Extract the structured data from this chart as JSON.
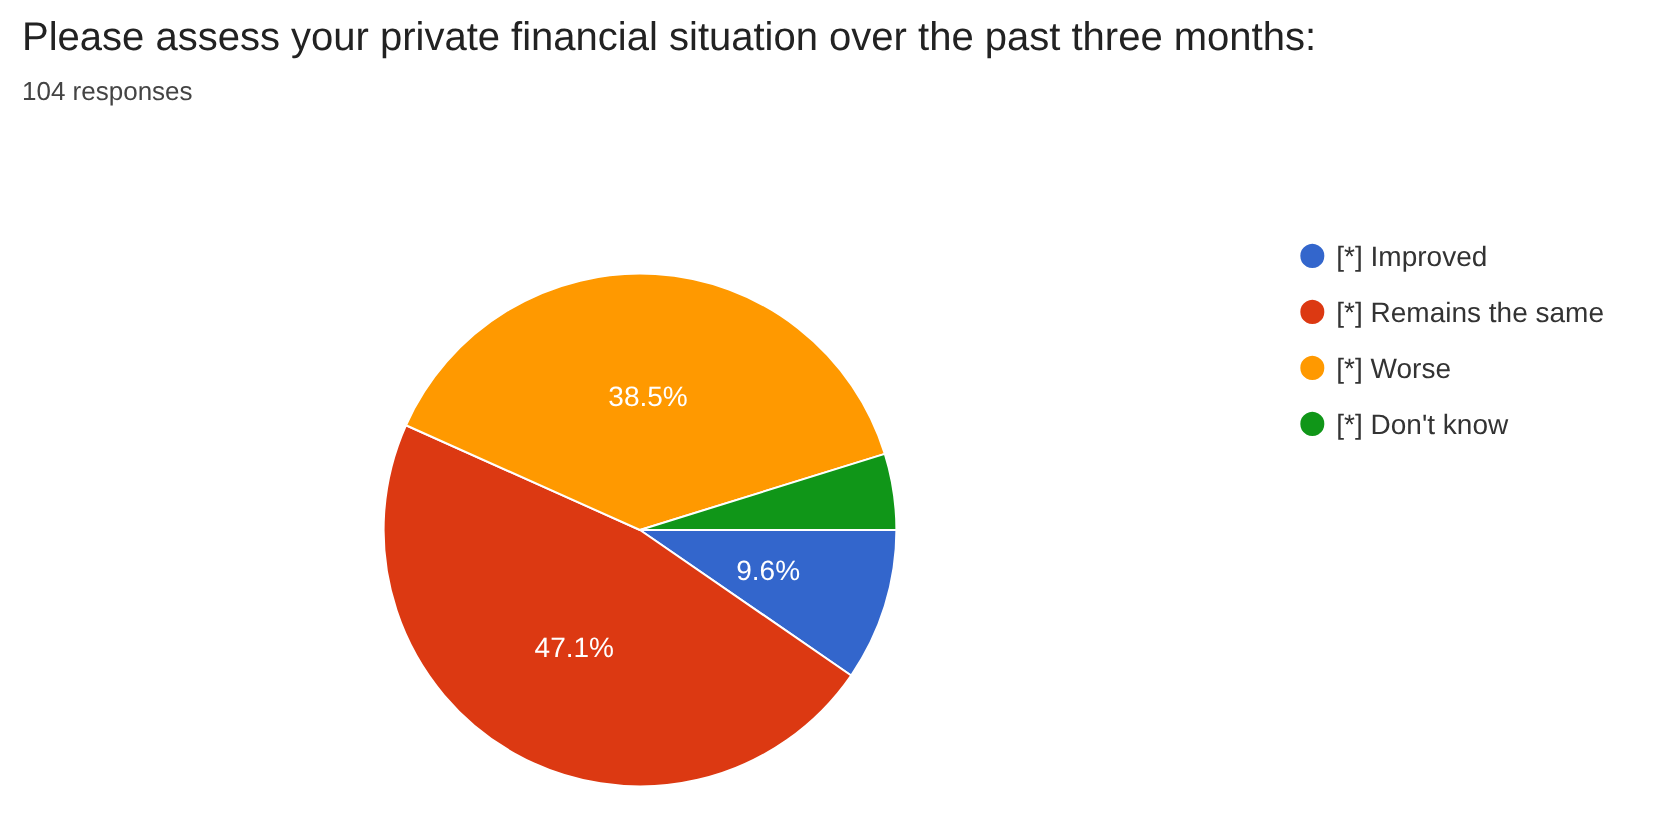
{
  "chart_data": {
    "type": "pie",
    "title": "Please assess your private financial situation over the past three months:",
    "subtitle": "104 responses",
    "categories": [
      "[*] Improved",
      "[*] Remains the same",
      "[*] Worse",
      "[*] Don't know"
    ],
    "values": [
      9.6,
      47.1,
      38.5,
      4.8
    ],
    "colors": [
      "#3366cc",
      "#dc3912",
      "#ff9900",
      "#109618"
    ],
    "value_labels": [
      "9.6%",
      "47.1%",
      "38.5%",
      null
    ],
    "legend": "right"
  }
}
